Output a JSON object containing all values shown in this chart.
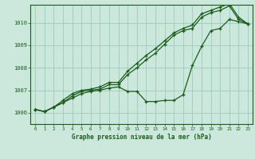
{
  "title": "Graphe pression niveau de la mer (hPa)",
  "bg_color": "#cce8dd",
  "grid_color": "#99ccbb",
  "line_color": "#1a5c1a",
  "xlim": [
    -0.5,
    23.5
  ],
  "ylim": [
    1005.5,
    1010.8
  ],
  "yticks": [
    1006,
    1007,
    1008,
    1009,
    1010
  ],
  "xticks": [
    0,
    1,
    2,
    3,
    4,
    5,
    6,
    7,
    8,
    9,
    10,
    11,
    12,
    13,
    14,
    15,
    16,
    17,
    18,
    19,
    20,
    21,
    22,
    23
  ],
  "line1_x": [
    0,
    1,
    2,
    3,
    4,
    5,
    6,
    7,
    8,
    9,
    10,
    11,
    12,
    13,
    14,
    15,
    16,
    17,
    18,
    19,
    20,
    21,
    22,
    23
  ],
  "line1_y": [
    1006.15,
    1006.05,
    1006.25,
    1006.45,
    1006.65,
    1006.85,
    1006.95,
    1007.0,
    1007.1,
    1007.15,
    1006.95,
    1006.95,
    1006.5,
    1006.5,
    1006.55,
    1006.55,
    1006.8,
    1008.1,
    1008.95,
    1009.65,
    1009.75,
    1010.15,
    1010.05,
    1009.95
  ],
  "line2_x": [
    0,
    1,
    2,
    3,
    4,
    5,
    6,
    7,
    8,
    9,
    10,
    11,
    12,
    13,
    14,
    15,
    16,
    17,
    18,
    19,
    20,
    21,
    22,
    23
  ],
  "line2_y": [
    1006.15,
    1006.05,
    1006.25,
    1006.45,
    1006.75,
    1006.95,
    1007.0,
    1007.05,
    1007.25,
    1007.25,
    1007.7,
    1008.0,
    1008.35,
    1008.65,
    1009.05,
    1009.45,
    1009.65,
    1009.75,
    1010.25,
    1010.45,
    1010.55,
    1010.75,
    1010.15,
    1009.95
  ],
  "line3_x": [
    0,
    1,
    2,
    3,
    4,
    5,
    6,
    7,
    8,
    9,
    10,
    11,
    12,
    13,
    14,
    15,
    16,
    17,
    18,
    19,
    20,
    21,
    22,
    23
  ],
  "line3_y": [
    1006.15,
    1006.05,
    1006.25,
    1006.55,
    1006.85,
    1007.0,
    1007.05,
    1007.15,
    1007.35,
    1007.35,
    1007.85,
    1008.2,
    1008.55,
    1008.85,
    1009.2,
    1009.55,
    1009.75,
    1009.9,
    1010.4,
    1010.55,
    1010.7,
    1010.85,
    1010.25,
    1009.95
  ]
}
